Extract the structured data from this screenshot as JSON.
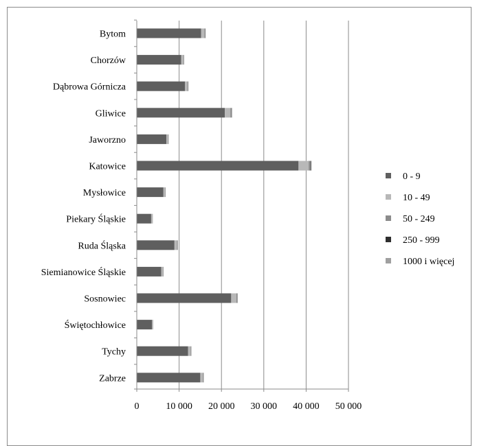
{
  "chart_data": {
    "type": "bar",
    "stacked": true,
    "orientation": "horizontal",
    "title": "",
    "xlabel": "",
    "ylabel": "",
    "xlim": [
      0,
      50000
    ],
    "x_ticks": [
      0,
      10000,
      20000,
      30000,
      40000,
      50000
    ],
    "x_tick_labels": [
      "0",
      "10 000",
      "20 000",
      "30 000",
      "40 000",
      "50 000"
    ],
    "grid": "vertical",
    "legend_position": "right",
    "categories": [
      "Bytom",
      "Chorzów",
      "Dąbrowa Górnicza",
      "Gliwice",
      "Jaworzno",
      "Katowice",
      "Mysłowice",
      "Piekary Śląskie",
      "Ruda Śląska",
      "Siemianowice Śląskie",
      "Sosnowiec",
      "Świętochłowice",
      "Tychy",
      "Zabrze"
    ],
    "series": [
      {
        "name": "0 - 9",
        "color": "#5f5f5f",
        "values": [
          15200,
          10500,
          11400,
          20800,
          7000,
          38200,
          6300,
          3400,
          8900,
          5800,
          22300,
          3600,
          12100,
          15000
        ]
      },
      {
        "name": "10 - 49",
        "color": "#b8b8b8",
        "values": [
          800,
          500,
          600,
          1300,
          400,
          2400,
          400,
          300,
          600,
          400,
          1200,
          200,
          600,
          600
        ]
      },
      {
        "name": "50 - 249",
        "color": "#8c8c8c",
        "values": [
          200,
          120,
          150,
          300,
          100,
          500,
          100,
          60,
          150,
          100,
          250,
          50,
          150,
          150
        ]
      },
      {
        "name": "250 - 999",
        "color": "#2e2e2e",
        "values": [
          40,
          30,
          30,
          60,
          20,
          120,
          20,
          10,
          30,
          20,
          50,
          10,
          30,
          40
        ]
      },
      {
        "name": "1000 i więcej",
        "color": "#a0a0a0",
        "values": [
          5,
          4,
          5,
          8,
          3,
          20,
          3,
          2,
          5,
          3,
          6,
          2,
          5,
          5
        ]
      }
    ]
  }
}
